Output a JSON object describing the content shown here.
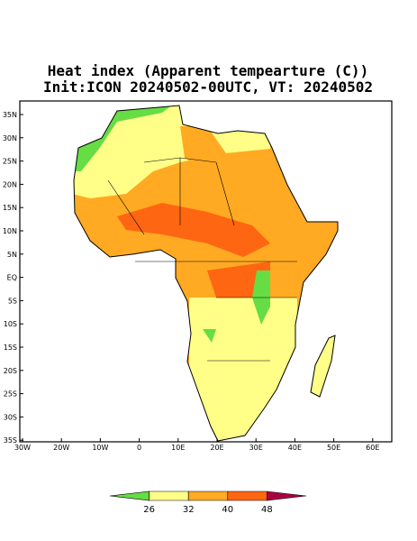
{
  "title": "Heat index (Apparent tempearture (C))",
  "subtitle": "Init:ICON 20240502-00UTC, VT: 20240502",
  "lat_labels": [
    "35N",
    "30N",
    "25N",
    "20N",
    "15N",
    "10N",
    "5N",
    "EQ",
    "5S",
    "10S",
    "15S",
    "20S",
    "25S",
    "30S",
    "35S"
  ],
  "lon_labels": [
    "30W",
    "20W",
    "10W",
    "0",
    "10E",
    "20E",
    "30E",
    "40E",
    "50E",
    "60E"
  ],
  "colorbar": {
    "levels": [
      26,
      32,
      40,
      48
    ],
    "colors": [
      "#66dd44",
      "#ffff88",
      "#ffaa22",
      "#ff6611",
      "#aa0044"
    ]
  }
}
